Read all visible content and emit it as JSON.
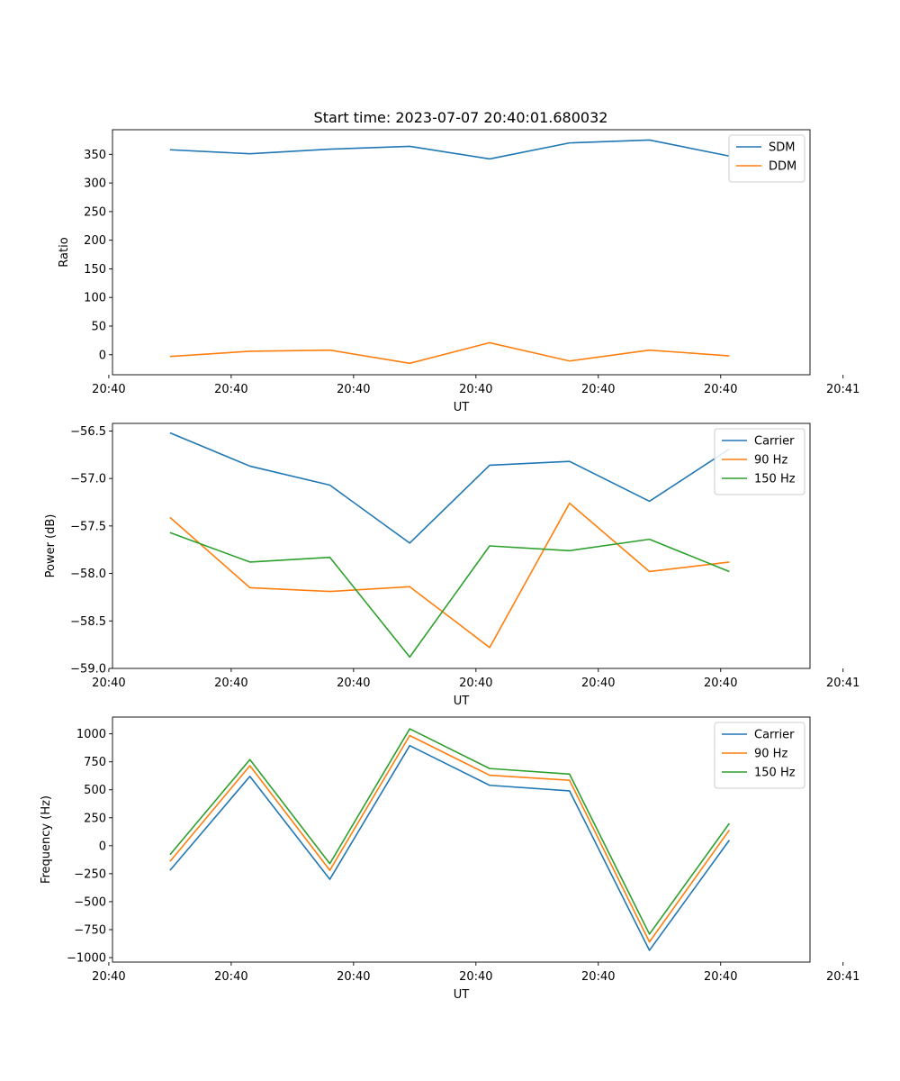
{
  "title": "Start time: 2023-07-07 20:40:01.680032",
  "colors": {
    "blue": "#1f77b4",
    "orange": "#ff7f0e",
    "green": "#2ca02c"
  },
  "chart_data": [
    {
      "type": "line",
      "id": "ratio",
      "title": "Start time: 2023-07-07 20:40:01.680032",
      "xlabel": "UT",
      "ylabel": "Ratio",
      "xlim": [
        -0.47,
        5.23
      ],
      "ylim": [
        -35,
        393
      ],
      "x": [
        0,
        0.653,
        1.306,
        1.959,
        2.612,
        3.265,
        3.918,
        4.571
      ],
      "x_tick_values": [
        -0.5,
        0.5,
        1.5,
        2.5,
        3.5,
        4.5,
        5.5
      ],
      "x_tick_labels": [
        "20:40",
        "20:40",
        "20:40",
        "20:40",
        "20:40",
        "20:40",
        "20:41"
      ],
      "y_tick_values": [
        0,
        50,
        100,
        150,
        200,
        250,
        300,
        350
      ],
      "y_tick_labels": [
        "0",
        "50",
        "100",
        "150",
        "200",
        "250",
        "300",
        "350"
      ],
      "legend": "top-right",
      "series": [
        {
          "name": "SDM",
          "color": "#1f77b4",
          "values": [
            358,
            351,
            359,
            364,
            342,
            370,
            375,
            347
          ]
        },
        {
          "name": "DDM",
          "color": "#ff7f0e",
          "values": [
            -3,
            6,
            8,
            -15,
            21,
            -11,
            8,
            -2
          ]
        }
      ]
    },
    {
      "type": "line",
      "id": "power",
      "xlabel": "UT",
      "ylabel": "Power (dB)",
      "xlim": [
        -0.47,
        5.23
      ],
      "ylim": [
        -59.0,
        -56.42
      ],
      "x": [
        0,
        0.653,
        1.306,
        1.959,
        2.612,
        3.265,
        3.918,
        4.571
      ],
      "x_tick_values": [
        -0.5,
        0.5,
        1.5,
        2.5,
        3.5,
        4.5,
        5.5
      ],
      "x_tick_labels": [
        "20:40",
        "20:40",
        "20:40",
        "20:40",
        "20:40",
        "20:40",
        "20:41"
      ],
      "y_tick_values": [
        -59.0,
        -58.5,
        -58.0,
        -57.5,
        -57.0,
        -56.5
      ],
      "y_tick_labels": [
        "−59.0",
        "−58.5",
        "−58.0",
        "−57.5",
        "−57.0",
        "−56.5"
      ],
      "legend": "top-right",
      "series": [
        {
          "name": "Carrier",
          "color": "#1f77b4",
          "values": [
            -56.52,
            -56.87,
            -57.07,
            -57.68,
            -56.86,
            -56.82,
            -57.24,
            -56.69
          ]
        },
        {
          "name": "90 Hz",
          "color": "#ff7f0e",
          "values": [
            -57.41,
            -58.15,
            -58.19,
            -58.14,
            -58.78,
            -57.26,
            -57.98,
            -57.88
          ]
        },
        {
          "name": "150 Hz",
          "color": "#2ca02c",
          "values": [
            -57.57,
            -57.88,
            -57.83,
            -58.88,
            -57.71,
            -57.76,
            -57.64,
            -57.98
          ]
        }
      ]
    },
    {
      "type": "line",
      "id": "frequency",
      "xlabel": "UT",
      "ylabel": "Frequency (Hz)",
      "xlim": [
        -0.47,
        5.23
      ],
      "ylim": [
        -1040,
        1150
      ],
      "x": [
        0,
        0.653,
        1.306,
        1.959,
        2.612,
        3.265,
        3.918,
        4.571
      ],
      "x_tick_values": [
        -0.5,
        0.5,
        1.5,
        2.5,
        3.5,
        4.5,
        5.5
      ],
      "x_tick_labels": [
        "20:40",
        "20:40",
        "20:40",
        "20:40",
        "20:40",
        "20:40",
        "20:41"
      ],
      "y_tick_values": [
        -1000,
        -750,
        -500,
        -250,
        0,
        250,
        500,
        750,
        1000
      ],
      "y_tick_labels": [
        "−1000",
        "−750",
        "−500",
        "−250",
        "0",
        "250",
        "500",
        "750",
        "1000"
      ],
      "legend": "top-right",
      "series": [
        {
          "name": "Carrier",
          "color": "#1f77b4",
          "values": [
            -220,
            620,
            -300,
            895,
            540,
            490,
            -935,
            50
          ]
        },
        {
          "name": "90 Hz",
          "color": "#ff7f0e",
          "values": [
            -140,
            715,
            -220,
            985,
            630,
            585,
            -860,
            140
          ]
        },
        {
          "name": "150 Hz",
          "color": "#2ca02c",
          "values": [
            -80,
            770,
            -160,
            1045,
            690,
            640,
            -790,
            200
          ]
        }
      ]
    }
  ]
}
